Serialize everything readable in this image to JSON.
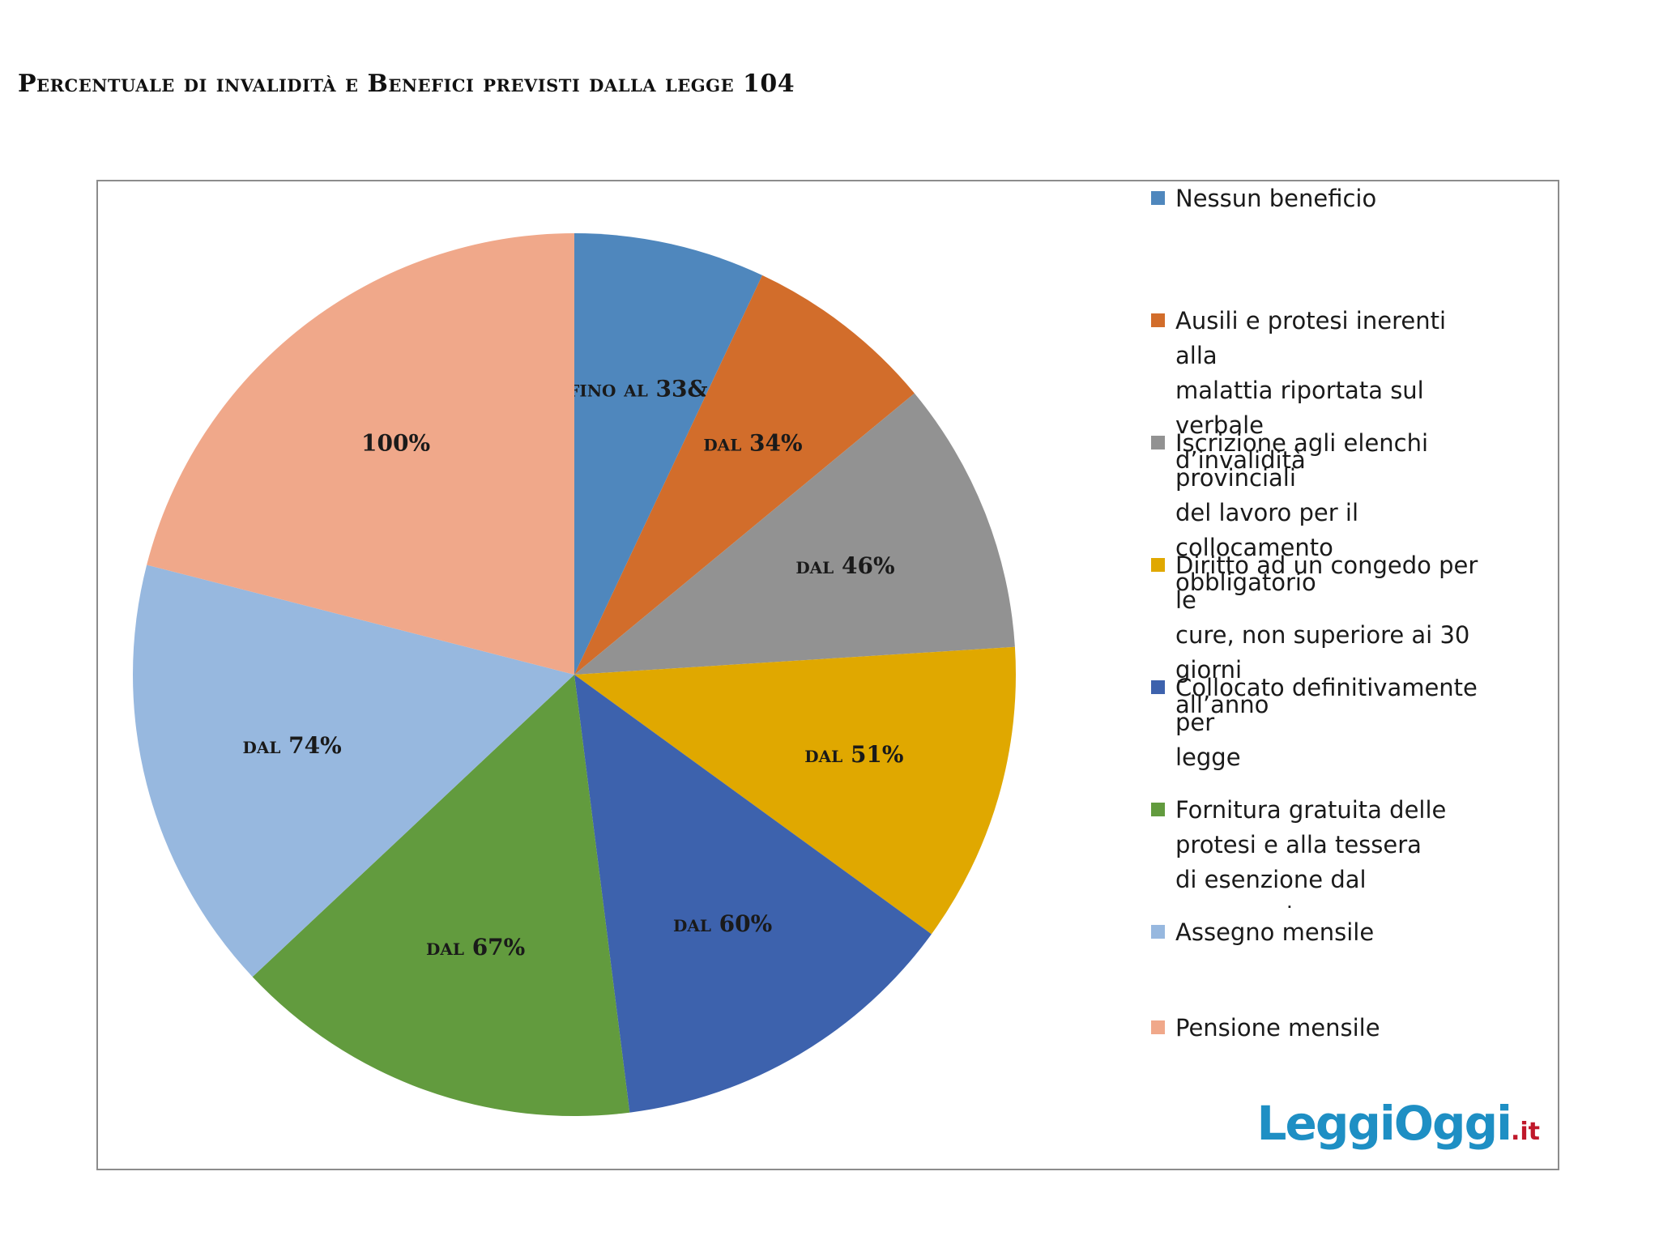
{
  "title": "Percentuale di invalidità e Benefici previsti dalla legge 104",
  "logo": {
    "main": "LeggiOggi",
    "tld": ".it"
  },
  "chart_data": {
    "type": "pie",
    "title": "Percentuale di invalidità e Benefici previsti dalla legge 104",
    "slices": [
      {
        "label": "fino al 33&",
        "legend": "Nessun beneficio",
        "value": 7,
        "color": "#4f87bd"
      },
      {
        "label": "dal 34%",
        "legend": "Ausili e protesi inerenti alla\nmalattia riportata sul verbale\nd’invalidità",
        "value": 7,
        "color": "#d26d2b"
      },
      {
        "label": "dal 46%",
        "legend": "Iscrizione agli elenchi provinciali\ndel lavoro per il collocamento\nobbligatorio",
        "value": 10,
        "color": "#929292"
      },
      {
        "label": "dal 51%",
        "legend": "Diritto ad un congedo per le\ncure, non superiore ai 30 giorni\nall’anno",
        "value": 11,
        "color": "#e0a800"
      },
      {
        "label": "dal 60%",
        "legend": "Collocato definitivamente per\nlegge",
        "value": 13,
        "color": "#3d62ad"
      },
      {
        "label": "dal 67%",
        "legend": "Fornitura gratuita delle\nprotesi e alla tessera\ndi esenzione dal pagamento\ndei ticket",
        "value": 15,
        "color": "#629b3e"
      },
      {
        "label": "dal 74%",
        "legend": "Assegno mensile",
        "value": 16,
        "color": "#97b8df"
      },
      {
        "label": "100%",
        "legend": "Pensione mensile",
        "value": 21,
        "color": "#f0a88a"
      }
    ],
    "legend_position": "right"
  }
}
